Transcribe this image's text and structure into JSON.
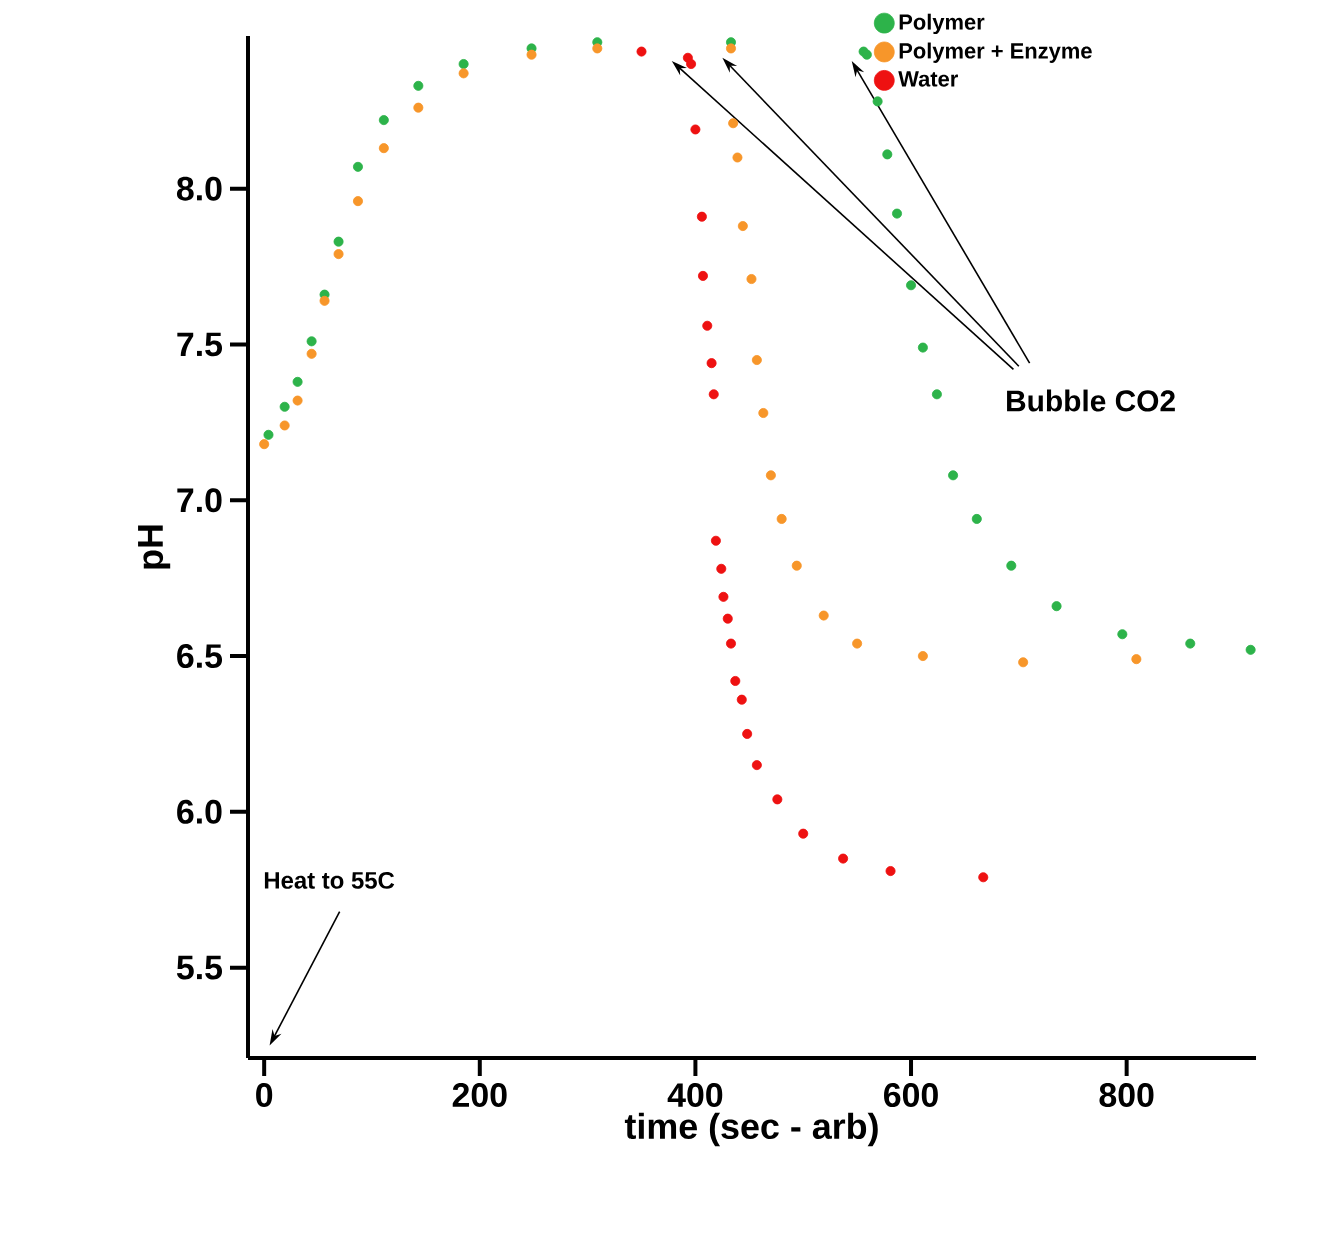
{
  "chart_data": {
    "type": "scatter",
    "xlabel": "time (sec - arb)",
    "ylabel": "pH",
    "xlim": [
      -15,
      920
    ],
    "ylim": [
      5.21,
      8.49
    ],
    "xticks": [
      0,
      200,
      400,
      600,
      800
    ],
    "yticks": [
      5.5,
      {
        "value": 6,
        "label": "6.0"
      },
      6.5,
      {
        "value": 7,
        "label": "7.0"
      },
      7.5,
      {
        "value": 8,
        "label": "8.0"
      }
    ],
    "grid": false,
    "legend": "top right",
    "marker": "circle",
    "annotations": [
      "Bubble CO2",
      "Heat to 55C"
    ],
    "series": [
      {
        "name": "Polymer",
        "color": "#2db34a",
        "x": [
          4,
          19,
          31,
          44,
          56,
          69,
          87,
          111,
          143,
          185,
          248,
          309,
          433,
          556,
          559,
          569,
          578,
          587,
          600,
          611,
          624,
          639,
          661,
          693,
          735,
          796,
          859,
          915
        ],
        "values": [
          7.21,
          7.3,
          7.38,
          7.51,
          7.66,
          7.83,
          8.07,
          8.22,
          8.33,
          8.4,
          8.45,
          8.47,
          8.47,
          8.44,
          8.43,
          8.28,
          8.11,
          7.92,
          7.69,
          7.49,
          7.34,
          7.08,
          6.94,
          6.79,
          6.66,
          6.57,
          6.54,
          6.52
        ]
      },
      {
        "name": "Polymer + Enzyme",
        "color": "#f7962a",
        "x": [
          0,
          19,
          31,
          44,
          56,
          69,
          87,
          111,
          143,
          185,
          248,
          309,
          433,
          435,
          439,
          444,
          452,
          457,
          463,
          470,
          480,
          494,
          519,
          550,
          611,
          704,
          809
        ],
        "values": [
          7.18,
          7.24,
          7.32,
          7.47,
          7.64,
          7.79,
          7.96,
          8.13,
          8.26,
          8.37,
          8.43,
          8.45,
          8.45,
          8.21,
          8.1,
          7.88,
          7.71,
          7.45,
          7.28,
          7.08,
          6.94,
          6.79,
          6.63,
          6.54,
          6.5,
          6.48,
          6.49
        ]
      },
      {
        "name": "Water",
        "color": "#ee1111",
        "x": [
          350,
          393,
          396,
          400,
          406,
          407,
          411,
          415,
          417,
          419,
          424,
          426,
          430,
          433,
          437,
          443,
          448,
          457,
          476,
          500,
          537,
          581,
          667
        ],
        "values": [
          8.44,
          8.42,
          8.4,
          8.19,
          7.91,
          7.72,
          7.56,
          7.44,
          7.34,
          6.87,
          6.78,
          6.69,
          6.62,
          6.54,
          6.42,
          6.36,
          6.25,
          6.15,
          6.04,
          5.93,
          5.85,
          5.81,
          5.79
        ]
      }
    ]
  }
}
